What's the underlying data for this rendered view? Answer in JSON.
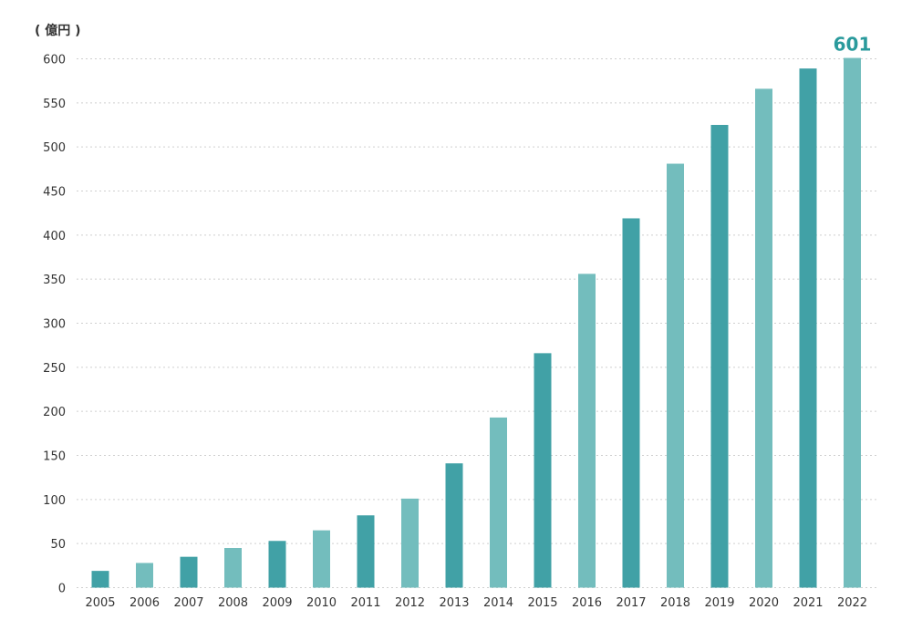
{
  "chart_data": {
    "type": "bar",
    "title": "",
    "unit_label": "( 億円 )",
    "xlabel": "",
    "ylabel": "",
    "categories": [
      "2005",
      "2006",
      "2007",
      "2008",
      "2009",
      "2010",
      "2011",
      "2012",
      "2013",
      "2014",
      "2015",
      "2016",
      "2017",
      "2018",
      "2019",
      "2020",
      "2021",
      "2022"
    ],
    "values": [
      19,
      28,
      35,
      45,
      53,
      65,
      82,
      101,
      141,
      193,
      266,
      356,
      419,
      481,
      525,
      566,
      589,
      601
    ],
    "ylim": [
      0,
      600
    ],
    "yticks": [
      0,
      50,
      100,
      150,
      200,
      250,
      300,
      350,
      400,
      450,
      500,
      550,
      600
    ],
    "grid": true,
    "legend": "none",
    "annotations": [
      {
        "category": "2022",
        "text": "601"
      }
    ],
    "colors": {
      "dark": "#41a1a6",
      "light": "#73bdbd",
      "label": "#2a9a9c",
      "pattern": [
        "dark",
        "light",
        "dark",
        "light",
        "dark",
        "light",
        "dark",
        "light",
        "dark",
        "light",
        "dark",
        "light",
        "dark",
        "light",
        "dark",
        "light",
        "dark",
        "light"
      ]
    }
  }
}
